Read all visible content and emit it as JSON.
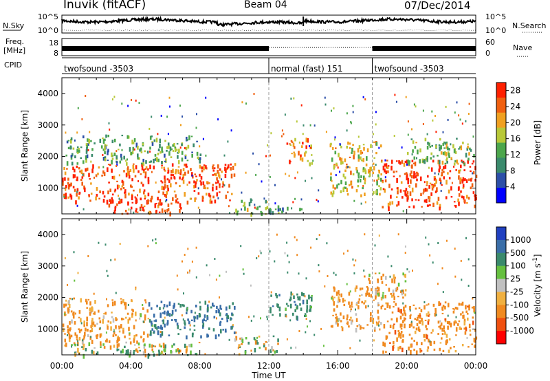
{
  "header": {
    "title": "Inuvik (fitACF)",
    "beam": "Beam 04",
    "date": "07/Dec/2014"
  },
  "noise_panel": {
    "left_label": "N.Sky",
    "left_ticks": [
      "10^5",
      "10^0"
    ],
    "right_label": "N.Search",
    "right_ticks": [
      "10^5",
      "10^0"
    ]
  },
  "freq_panel": {
    "left_label_1": "Freq.",
    "left_label_2": "[MHz]",
    "left_ticks": [
      "18",
      "8"
    ],
    "right_label": "Nave",
    "right_ticks": [
      "60",
      "0"
    ]
  },
  "cpid": {
    "label": "CPID",
    "segments": [
      {
        "text": "twofsound -3503",
        "start_hour": 0,
        "end_hour": 12
      },
      {
        "text": "normal (fast) 151",
        "start_hour": 12,
        "end_hour": 18
      },
      {
        "text": "twofsound -3503",
        "start_hour": 18,
        "end_hour": 24
      }
    ]
  },
  "x_axis": {
    "label": "Time UT",
    "ticks": [
      "00:00",
      "04:00",
      "08:00",
      "12:00",
      "16:00",
      "20:00",
      "00:00"
    ]
  },
  "colors": {
    "power_scale": [
      "#0000ff",
      "#2c4fa8",
      "#3a8a6c",
      "#4ca64c",
      "#b8c838",
      "#f0a020",
      "#f06010",
      "#ff2000"
    ],
    "velocity_scale": [
      "#2040c0",
      "#3a6ea8",
      "#3a8a6c",
      "#66c040",
      "#c0c0c0",
      "#f0b040",
      "#f08a20",
      "#f05010",
      "#ff0000"
    ]
  },
  "chart_data": [
    {
      "type": "heatmap",
      "title": "",
      "xlabel": "",
      "ylabel": "Slant Range [km]",
      "xlim": [
        0,
        24
      ],
      "ylim": [
        180,
        4500
      ],
      "yticks": [
        "1000",
        "2000",
        "3000",
        "4000"
      ],
      "colorbar": {
        "label": "Power [dB]",
        "ticks": [
          "4",
          "8",
          "12",
          "16",
          "20",
          "24",
          "28"
        ],
        "range": [
          0,
          30
        ]
      },
      "blobs": [
        {
          "t0": 0.0,
          "t1": 10.0,
          "r0": 600,
          "r1": 1800,
          "value": 26
        },
        {
          "t0": 0.2,
          "t1": 8.0,
          "r0": 1800,
          "r1": 2700,
          "value": 12
        },
        {
          "t0": 2.5,
          "t1": 7.0,
          "r0": 200,
          "r1": 700,
          "value": 28
        },
        {
          "t0": 10.0,
          "t1": 12.0,
          "r0": 200,
          "r1": 700,
          "value": 14
        },
        {
          "t0": 12.0,
          "t1": 14.0,
          "r0": 200,
          "r1": 500,
          "value": 10
        },
        {
          "t0": 13.0,
          "t1": 14.5,
          "r0": 1800,
          "r1": 2600,
          "value": 22
        },
        {
          "t0": 15.5,
          "t1": 18.5,
          "r0": 800,
          "r1": 2500,
          "value": 18
        },
        {
          "t0": 18.5,
          "t1": 24.0,
          "r0": 400,
          "r1": 1900,
          "value": 27
        },
        {
          "t0": 20.0,
          "t1": 24.0,
          "r0": 1800,
          "r1": 2600,
          "value": 14
        }
      ]
    },
    {
      "type": "heatmap",
      "title": "",
      "xlabel": "Time UT",
      "ylabel": "Slant Range [km]",
      "xlim": [
        0,
        24
      ],
      "ylim": [
        180,
        4500
      ],
      "yticks": [
        "1000",
        "2000",
        "3000",
        "4000"
      ],
      "colorbar": {
        "label": "Velocity [m s^-1]",
        "ticks": [
          "1000",
          "500",
          "100",
          "25",
          "-25",
          "-100",
          "-500",
          "-1000"
        ],
        "range": [
          -1000,
          1000
        ]
      },
      "blobs": [
        {
          "t0": 0.0,
          "t1": 5.0,
          "r0": 500,
          "r1": 2000,
          "value": -200
        },
        {
          "t0": 5.0,
          "t1": 10.0,
          "r0": 800,
          "r1": 1900,
          "value": 600
        },
        {
          "t0": 0.5,
          "t1": 8.0,
          "r0": 200,
          "r1": 600,
          "value": 60
        },
        {
          "t0": 5.0,
          "t1": 8.0,
          "r0": 200,
          "r1": 400,
          "value": 0
        },
        {
          "t0": 10.0,
          "t1": 12.5,
          "r0": 200,
          "r1": 800,
          "value": 60
        },
        {
          "t0": 12.0,
          "t1": 14.5,
          "r0": 1400,
          "r1": 2200,
          "value": 300
        },
        {
          "t0": 15.5,
          "t1": 18.5,
          "r0": 1000,
          "r1": 2400,
          "value": -200
        },
        {
          "t0": 18.5,
          "t1": 24.0,
          "r0": 300,
          "r1": 1900,
          "value": -300
        },
        {
          "t0": 17.5,
          "t1": 20.0,
          "r0": 2000,
          "r1": 2800,
          "value": -120
        }
      ]
    }
  ]
}
